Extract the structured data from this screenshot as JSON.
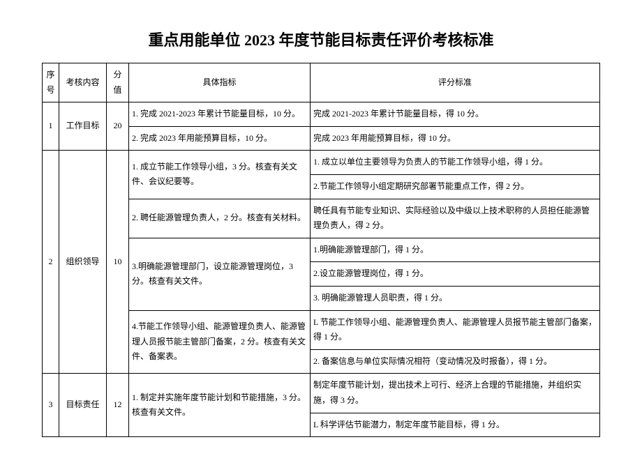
{
  "title": "重点用能单位 2023 年度节能目标责任评价考核标准",
  "headers": {
    "seq": "序号",
    "item": "考核内容",
    "score": "分值",
    "indicator": "具体指标",
    "standard": "评分标准"
  },
  "rows": {
    "r1": {
      "seq": "1",
      "item": "工作目标",
      "score": "20",
      "ind1": "1. 完成 2021-2023 年累计节能量目标，10 分。",
      "std1": "完成 2021-2023 年累计节能量目标，得 10 分。",
      "ind2": "2. 完成 2023 年用能预算目标，10 分。",
      "std2": "完成 2023 年用能预算目标，得 10 分。"
    },
    "r2": {
      "seq": "2",
      "item": "组织领导",
      "score": "10",
      "ind1": "1. 成立节能工作领导小组，3 分。核查有关文件、会议纪要等。",
      "std1a": "1. 成立以单位主要领导为负责人的节能工作领导小组，得 1 分。",
      "std1b": "2.节能工作领导小组定期研究部署节能重点工作，得 2 分。",
      "ind2": "2. 聘任能源管理负责人，2 分。核查有关材料。",
      "std2": "聘任具有节能专业知识、实际经验以及中级以上技术职称的人员担任能源管理负责人，得 2 分。",
      "ind3": "3.明确能源管理部门，设立能源管理岗位，3 分。核查有关文件。",
      "std3a": "1.明确能源管理部门，得 1 分。",
      "std3b": "2.设立能源管理岗位，得 1 分。",
      "std3c": "3. 明确能源管理人员职责，得 1 分。",
      "ind4": "4.节能工作领导小组、能源管理负责人、能源管理人员报节能主管部门备案，2 分。核查有关文件、备案表。",
      "std4a": "L 节能工作领导小组、能源管理负责人、能源管理人员报节能主管部门备案，得 1 分。",
      "std4b": "2. 备案信息与单位实际情况相符（变动情况及时报备），得 1 分。"
    },
    "r3": {
      "seq": "3",
      "item": "目标责任",
      "score": "12",
      "ind1": "1. 制定并实施年度节能计划和节能措施，3 分。核查有关文件。",
      "std1a": "制定年度节能计划，提出技术上可行、经济上合理的节能措施，并组织实施，得 3 分。",
      "std1b": "L 科学评估节能潜力，制定年度节能目标，得 1 分。"
    }
  }
}
